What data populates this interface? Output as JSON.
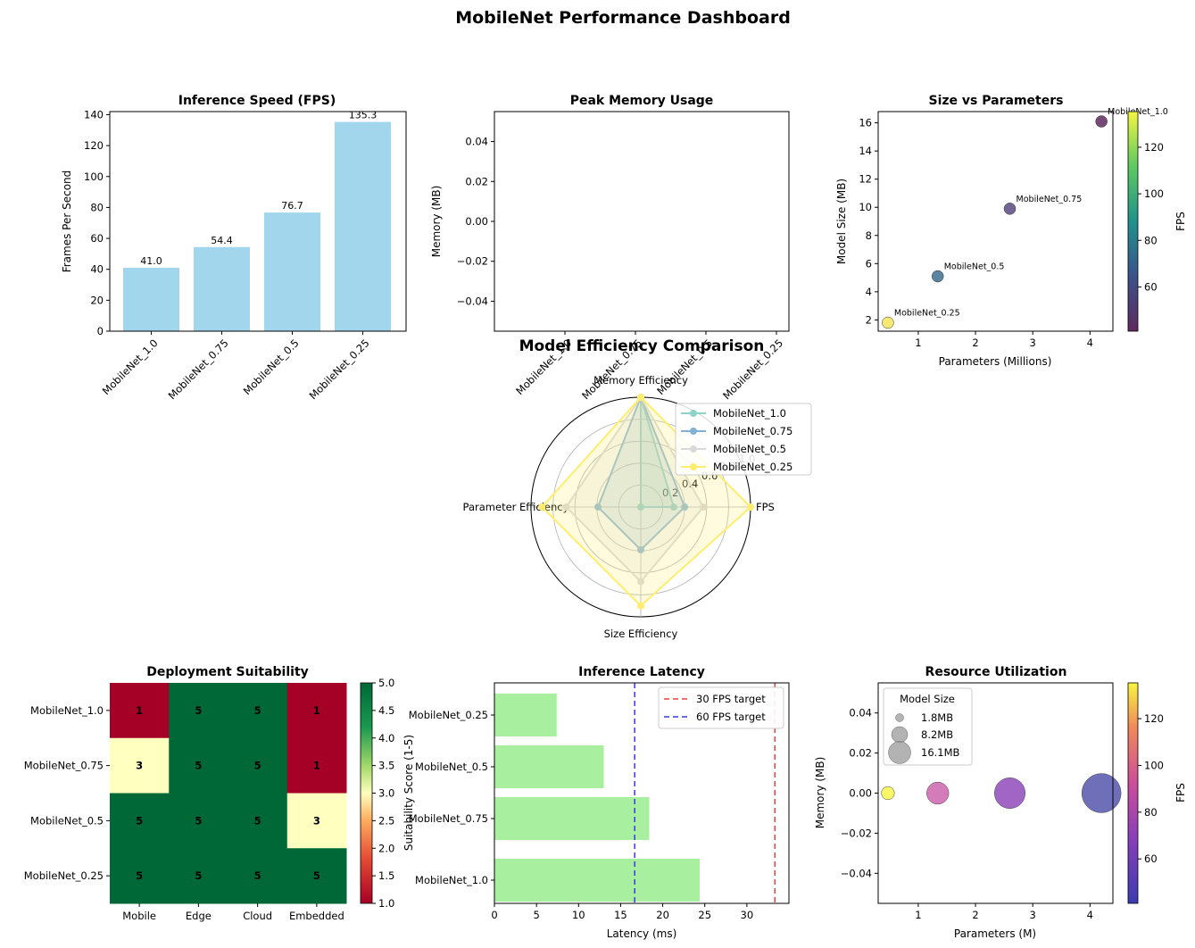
{
  "dashboard": {
    "title": "MobileNet Performance Dashboard"
  },
  "chart_data": [
    {
      "id": "fps",
      "type": "bar",
      "title": "Inference Speed (FPS)",
      "ylabel": "Frames Per Second",
      "xlabel": "",
      "categories": [
        "MobileNet_1.0",
        "MobileNet_0.75",
        "MobileNet_0.5",
        "MobileNet_0.25"
      ],
      "values": [
        41.0,
        54.4,
        76.7,
        135.3
      ],
      "value_labels": [
        "41.0",
        "54.4",
        "76.7",
        "135.3"
      ],
      "ylim": [
        0,
        142
      ],
      "yticks": [
        0,
        20,
        40,
        60,
        80,
        100,
        120,
        140
      ],
      "color": "#a1d6ec"
    },
    {
      "id": "memory",
      "type": "bar",
      "title": "Peak Memory Usage",
      "ylabel": "Memory (MB)",
      "categories": [
        "MobileNet_1.0",
        "MobileNet_0.75",
        "MobileNet_0.5",
        "MobileNet_0.25"
      ],
      "values": [
        0,
        0,
        0,
        0
      ],
      "ylim": [
        -0.055,
        0.055
      ],
      "yticks": [
        -0.04,
        -0.02,
        0.0,
        0.02,
        0.04
      ],
      "ytick_labels": [
        "−0.04",
        "−0.02",
        "0.00",
        "0.02",
        "0.04"
      ]
    },
    {
      "id": "size_vs_params",
      "type": "scatter",
      "title": "Size vs Parameters",
      "xlabel": "Parameters (Millions)",
      "ylabel": "Model Size (MB)",
      "xlim": [
        0.3,
        4.4
      ],
      "ylim": [
        1.2,
        16.8
      ],
      "xticks": [
        1,
        2,
        3,
        4
      ],
      "yticks": [
        2,
        4,
        6,
        8,
        10,
        12,
        14,
        16
      ],
      "points": [
        {
          "label": "MobileNet_1.0",
          "x": 4.2,
          "y": 16.1,
          "fps": 41.0,
          "color": "#5e2a5e"
        },
        {
          "label": "MobileNet_0.75",
          "x": 2.6,
          "y": 9.9,
          "fps": 54.4,
          "color": "#5a4b84"
        },
        {
          "label": "MobileNet_0.5",
          "x": 1.34,
          "y": 5.1,
          "fps": 76.7,
          "color": "#3d6f91"
        },
        {
          "label": "MobileNet_0.25",
          "x": 0.47,
          "y": 1.8,
          "fps": 135.3,
          "color": "#f5e45a"
        }
      ],
      "colorbar": {
        "label": "FPS",
        "ticks": [
          60,
          80,
          100,
          120
        ],
        "range": [
          41,
          135.3
        ]
      }
    },
    {
      "id": "radar",
      "type": "radar",
      "title": "Model Efficiency Comparison",
      "axes": [
        "FPS",
        "Memory Efficiency",
        "Parameter Efficiency",
        "Size Efficiency"
      ],
      "rticks": [
        "0.2",
        "0.4",
        "0.6",
        "0.8",
        "1.0"
      ],
      "series": [
        {
          "name": "MobileNet_1.0",
          "values": [
            0.3,
            1.0,
            0.0,
            0.0
          ],
          "color": "#8dd3c7"
        },
        {
          "name": "MobileNet_0.75",
          "values": [
            0.4,
            1.0,
            0.39,
            0.39
          ],
          "color": "#80b1d3"
        },
        {
          "name": "MobileNet_0.5",
          "values": [
            0.57,
            1.0,
            0.68,
            0.68
          ],
          "color": "#d9d9d9"
        },
        {
          "name": "MobileNet_0.25",
          "values": [
            1.0,
            1.0,
            0.9,
            0.9
          ],
          "color": "#ffed6f"
        }
      ]
    },
    {
      "id": "suitability",
      "type": "heatmap",
      "title": "Deployment Suitability",
      "rows": [
        "MobileNet_1.0",
        "MobileNet_0.75",
        "MobileNet_0.5",
        "MobileNet_0.25"
      ],
      "cols": [
        "Mobile",
        "Edge",
        "Cloud",
        "Embedded"
      ],
      "values": [
        [
          1,
          5,
          5,
          1
        ],
        [
          3,
          5,
          5,
          1
        ],
        [
          5,
          5,
          5,
          3
        ],
        [
          5,
          5,
          5,
          5
        ]
      ],
      "colorbar": {
        "label": "Suitability Score (1-5)",
        "ticks": [
          "1.0",
          "1.5",
          "2.0",
          "2.5",
          "3.0",
          "3.5",
          "4.0",
          "4.5",
          "5.0"
        ],
        "range": [
          1,
          5
        ]
      }
    },
    {
      "id": "latency",
      "type": "bar",
      "orientation": "horizontal",
      "title": "Inference Latency",
      "xlabel": "Latency (ms)",
      "categories": [
        "MobileNet_1.0",
        "MobileNet_0.75",
        "MobileNet_0.5",
        "MobileNet_0.25"
      ],
      "values": [
        24.4,
        18.4,
        13.0,
        7.4
      ],
      "xlim": [
        0,
        35
      ],
      "xticks": [
        0,
        5,
        10,
        15,
        20,
        25,
        30
      ],
      "color": "#a8f0a0",
      "reference_lines": [
        {
          "label": "30 FPS target",
          "value": 33.33,
          "color": "#e8423c"
        },
        {
          "label": "60 FPS target",
          "value": 16.67,
          "color": "#3a3ad8"
        }
      ]
    },
    {
      "id": "resources",
      "type": "scatter",
      "title": "Resource Utilization",
      "xlabel": "Parameters (M)",
      "ylabel": "Memory (MB)",
      "xlim": [
        0.3,
        4.4
      ],
      "ylim": [
        -0.055,
        0.055
      ],
      "xticks": [
        1,
        2,
        3,
        4
      ],
      "yticks": [
        -0.04,
        -0.02,
        0.0,
        0.02,
        0.04
      ],
      "ytick_labels": [
        "−0.04",
        "−0.02",
        "0.00",
        "0.02",
        "0.04"
      ],
      "points": [
        {
          "x": 4.2,
          "y": 0,
          "size_mb": 16.1,
          "fps": 41.0,
          "color": "#4b4ba8"
        },
        {
          "x": 2.6,
          "y": 0,
          "size_mb": 9.9,
          "fps": 54.4,
          "color": "#8a3fb8"
        },
        {
          "x": 1.34,
          "y": 0,
          "size_mb": 5.1,
          "fps": 76.7,
          "color": "#c95aa8"
        },
        {
          "x": 0.47,
          "y": 0,
          "size_mb": 1.8,
          "fps": 135.3,
          "color": "#f5f542"
        }
      ],
      "legend": {
        "title": "Model Size",
        "entries": [
          "1.8MB",
          "8.2MB",
          "16.1MB"
        ]
      },
      "colorbar": {
        "label": "FPS",
        "ticks": [
          60,
          80,
          100,
          120
        ],
        "range": [
          41,
          135.3
        ]
      }
    }
  ]
}
